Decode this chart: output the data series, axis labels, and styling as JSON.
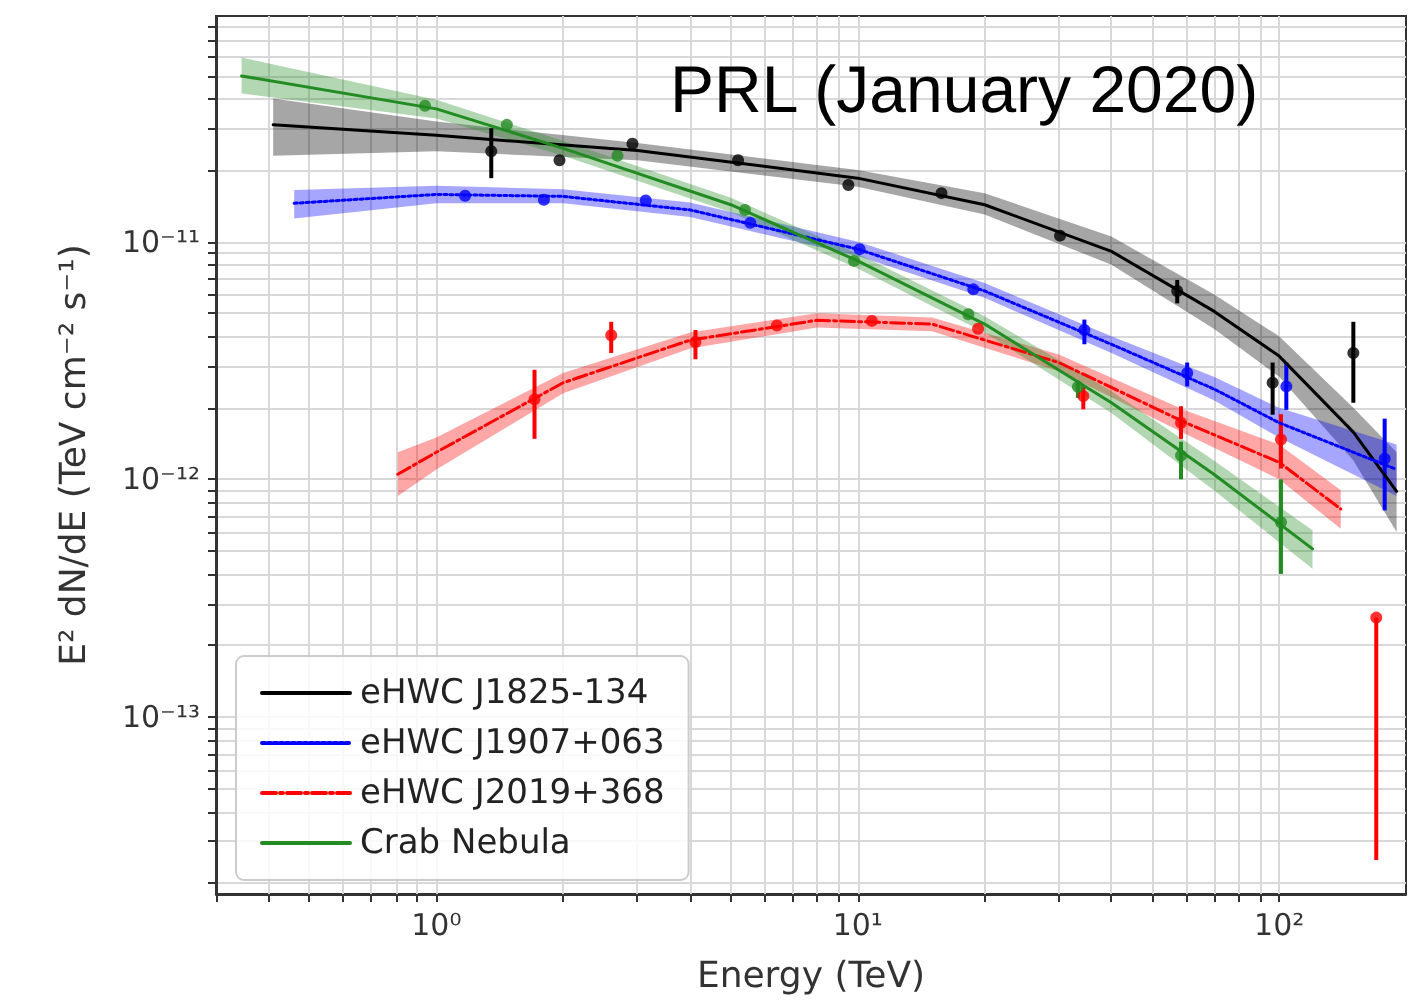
{
  "chart_data": {
    "type": "line",
    "xlabel": "Energy (TeV)",
    "ylabel": "E² dN/dE (TeV cm⁻² s⁻¹)",
    "annotations": [
      "PRL (January 2020)"
    ],
    "log": "xy",
    "grid": true,
    "legend": "bottom left",
    "xlim": [
      0.3,
      200
    ],
    "ylim": [
      1.8e-14,
      8.9e-11
    ],
    "xticks": [
      {
        "value": 0.3,
        "label": null
      },
      {
        "value": 0.4,
        "label": null
      },
      {
        "value": 0.5,
        "label": null
      },
      {
        "value": 0.6,
        "label": null
      },
      {
        "value": 0.7,
        "label": null
      },
      {
        "value": 0.8,
        "label": null
      },
      {
        "value": 0.9,
        "label": null
      },
      {
        "value": 1,
        "label": "10⁰"
      },
      {
        "value": 2,
        "label": null
      },
      {
        "value": 3,
        "label": null
      },
      {
        "value": 4,
        "label": null
      },
      {
        "value": 5,
        "label": null
      },
      {
        "value": 6,
        "label": null
      },
      {
        "value": 7,
        "label": null
      },
      {
        "value": 8,
        "label": null
      },
      {
        "value": 9,
        "label": null
      },
      {
        "value": 10,
        "label": "10¹"
      },
      {
        "value": 20,
        "label": null
      },
      {
        "value": 30,
        "label": null
      },
      {
        "value": 40,
        "label": null
      },
      {
        "value": 50,
        "label": null
      },
      {
        "value": 60,
        "label": null
      },
      {
        "value": 70,
        "label": null
      },
      {
        "value": 80,
        "label": null
      },
      {
        "value": 90,
        "label": null
      },
      {
        "value": 100,
        "label": "10²"
      }
    ],
    "yticks": [
      {
        "value": 2e-14,
        "label": null
      },
      {
        "value": 3e-14,
        "label": null
      },
      {
        "value": 4e-14,
        "label": null
      },
      {
        "value": 5e-14,
        "label": null
      },
      {
        "value": 6e-14,
        "label": null
      },
      {
        "value": 7e-14,
        "label": null
      },
      {
        "value": 8e-14,
        "label": null
      },
      {
        "value": 9e-14,
        "label": null
      },
      {
        "value": 1e-13,
        "label": "10⁻¹³"
      },
      {
        "value": 2e-13,
        "label": null
      },
      {
        "value": 3e-13,
        "label": null
      },
      {
        "value": 4e-13,
        "label": null
      },
      {
        "value": 5e-13,
        "label": null
      },
      {
        "value": 6e-13,
        "label": null
      },
      {
        "value": 7e-13,
        "label": null
      },
      {
        "value": 8e-13,
        "label": null
      },
      {
        "value": 9e-13,
        "label": null
      },
      {
        "value": 1e-12,
        "label": "10⁻¹²"
      },
      {
        "value": 2e-12,
        "label": null
      },
      {
        "value": 3e-12,
        "label": null
      },
      {
        "value": 4e-12,
        "label": null
      },
      {
        "value": 5e-12,
        "label": null
      },
      {
        "value": 6e-12,
        "label": null
      },
      {
        "value": 7e-12,
        "label": null
      },
      {
        "value": 8e-12,
        "label": null
      },
      {
        "value": 9e-12,
        "label": null
      },
      {
        "value": 1e-11,
        "label": "10⁻¹¹"
      },
      {
        "value": 2e-11,
        "label": null
      },
      {
        "value": 3e-11,
        "label": null
      },
      {
        "value": 4e-11,
        "label": null
      },
      {
        "value": 5e-11,
        "label": null
      },
      {
        "value": 6e-11,
        "label": null
      },
      {
        "value": 7e-11,
        "label": null
      },
      {
        "value": 8e-11,
        "label": null
      }
    ],
    "series": [
      {
        "name": "eHWC J1825-134",
        "color": "#000000",
        "line_style": "solid",
        "marker": "none",
        "x": [
          0.41,
          1,
          3,
          10,
          20,
          40,
          70,
          100,
          150,
          190
        ],
        "values": [
          3.1e-11,
          2.8e-11,
          2.42e-11,
          1.85e-11,
          1.43e-11,
          9.1e-12,
          5.1e-12,
          3.3e-12,
          1.58e-12,
          8.9e-13
        ],
        "lower": [
          2.3e-11,
          2.4e-11,
          2.2e-11,
          1.7e-11,
          1.3e-11,
          8e-12,
          4.3e-12,
          2.7e-12,
          1.2e-12,
          6e-13
        ],
        "upper": [
          4e-11,
          3.2e-11,
          2.6e-11,
          2e-11,
          1.6e-11,
          1.05e-11,
          6e-12,
          4e-12,
          2e-12,
          1.3e-12
        ]
      },
      {
        "name": "eHWC J1907+063",
        "color": "#0000ff",
        "line_style": "dotted",
        "marker": "none",
        "x": [
          0.46,
          1,
          2,
          4,
          10,
          20,
          40,
          70,
          100,
          190
        ],
        "values": [
          1.45e-11,
          1.58e-11,
          1.55e-11,
          1.36e-11,
          9.3e-12,
          6.2e-12,
          3.7e-12,
          2.4e-12,
          1.73e-12,
          1.1e-12
        ],
        "lower": [
          1.25e-11,
          1.45e-11,
          1.45e-11,
          1.27e-11,
          8.7e-12,
          5.8e-12,
          3.4e-12,
          2.15e-12,
          1.5e-12,
          8.5e-13
        ],
        "upper": [
          1.65e-11,
          1.72e-11,
          1.66e-11,
          1.46e-11,
          1e-11,
          6.7e-12,
          4e-12,
          2.7e-12,
          2e-12,
          1.4e-12
        ]
      },
      {
        "name": "eHWC J2019+368",
        "color": "#ff0000",
        "line_style": "dashdot",
        "marker": "none",
        "x": [
          0.81,
          1,
          2,
          4,
          8,
          15,
          30,
          60,
          100,
          140
        ],
        "values": [
          1.05e-12,
          1.3e-12,
          2.55e-12,
          3.85e-12,
          4.67e-12,
          4.5e-12,
          3.1e-12,
          1.73e-12,
          1.18e-12,
          7.5e-13
        ],
        "lower": [
          8.5e-13,
          1.1e-12,
          2.3e-12,
          3.55e-12,
          4.35e-12,
          4.2e-12,
          2.85e-12,
          1.55e-12,
          1e-12,
          6.2e-13
        ],
        "upper": [
          1.3e-12,
          1.5e-12,
          2.8e-12,
          4.15e-12,
          5e-12,
          4.8e-12,
          3.35e-12,
          1.95e-12,
          1.4e-12,
          9e-13
        ]
      },
      {
        "name": "Crab Nebula",
        "color": "#228b22",
        "line_style": "solid",
        "marker": "none",
        "x": [
          0.345,
          1,
          2,
          5,
          10,
          20,
          40,
          70,
          120
        ],
        "values": [
          4.98e-11,
          3.62e-11,
          2.47e-11,
          1.43e-11,
          8.3e-12,
          4.5e-12,
          2.1e-12,
          1.05e-12,
          5.1e-13
        ],
        "lower": [
          4.2e-11,
          3.3e-11,
          2.3e-11,
          1.33e-11,
          7.7e-12,
          4.15e-12,
          1.9e-12,
          9e-13,
          4.2e-13
        ],
        "upper": [
          5.95e-11,
          3.95e-11,
          2.65e-11,
          1.53e-11,
          8.9e-12,
          4.85e-12,
          2.35e-12,
          1.2e-12,
          6.1e-13
        ]
      },
      {
        "type": "scatter",
        "color": "#000000",
        "marker": "circle",
        "x": [
          1.35,
          1.96,
          2.92,
          5.2,
          9.5,
          15.8,
          30.2,
          57.3,
          96.5,
          150
        ],
        "values": [
          2.4e-11,
          2.2e-11,
          2.58e-11,
          2.2e-11,
          1.73e-11,
          1.6e-11,
          1.06e-11,
          6.2e-12,
          2.55e-12,
          3.4e-12
        ],
        "errors": [
          [
            1.85e-11,
            3e-11
          ],
          null,
          null,
          null,
          null,
          null,
          null,
          [
            5.5e-12,
            6.9e-12
          ],
          [
            1.87e-12,
            3.1e-12
          ],
          [
            2.1e-12,
            4.6e-12
          ]
        ]
      },
      {
        "type": "scatter",
        "color": "#0000ff",
        "marker": "circle",
        "x": [
          1.17,
          1.8,
          3.14,
          5.56,
          10.1,
          18.8,
          34.5,
          60.5,
          104,
          178
        ],
        "values": [
          1.56e-11,
          1.5e-11,
          1.49e-11,
          1.2e-11,
          9.3e-12,
          6.3e-12,
          4.25e-12,
          2.8e-12,
          2.46e-12,
          1.22e-12
        ],
        "errors": [
          null,
          null,
          null,
          null,
          null,
          null,
          [
            3.7e-12,
            4.7e-12
          ],
          [
            2.46e-12,
            3.1e-12
          ],
          [
            1.96e-12,
            3.1e-12
          ],
          [
            7.4e-13,
            1.8e-12
          ]
        ]
      },
      {
        "type": "scatter",
        "color": "#ff0000",
        "marker": "circle",
        "x": [
          1.71,
          2.6,
          4.12,
          6.43,
          10.8,
          19.3,
          34.3,
          58.5,
          101,
          170
        ],
        "values": [
          2.17e-12,
          4.04e-12,
          3.78e-12,
          4.44e-12,
          4.64e-12,
          4.3e-12,
          2.24e-12,
          1.73e-12,
          1.47e-12,
          2.62e-13
        ],
        "errors": [
          [
            1.48e-12,
            2.89e-12
          ],
          [
            3.4e-12,
            4.6e-12
          ],
          [
            3.2e-12,
            4.25e-12
          ],
          null,
          null,
          null,
          [
            1.97e-12,
            2.46e-12
          ],
          [
            1.48e-12,
            2.03e-12
          ],
          [
            1.11e-12,
            1.88e-12
          ],
          [
            2.5e-14,
            2.62e-13
          ]
        ]
      },
      {
        "type": "scatter",
        "color": "#228b22",
        "marker": "circle",
        "x": [
          0.94,
          1.47,
          2.69,
          5.4,
          9.8,
          18.3,
          33.3,
          58.5,
          101
        ],
        "values": [
          3.73e-11,
          3.1e-11,
          2.3e-11,
          1.36e-11,
          8.3e-12,
          4.95e-12,
          2.45e-12,
          1.26e-12,
          6.6e-13
        ],
        "errors": [
          null,
          null,
          null,
          null,
          null,
          null,
          [
            2.2e-12,
            2.6e-12
          ],
          [
            1e-12,
            1.44e-12
          ],
          [
            4e-13,
            1e-12
          ]
        ]
      }
    ]
  }
}
